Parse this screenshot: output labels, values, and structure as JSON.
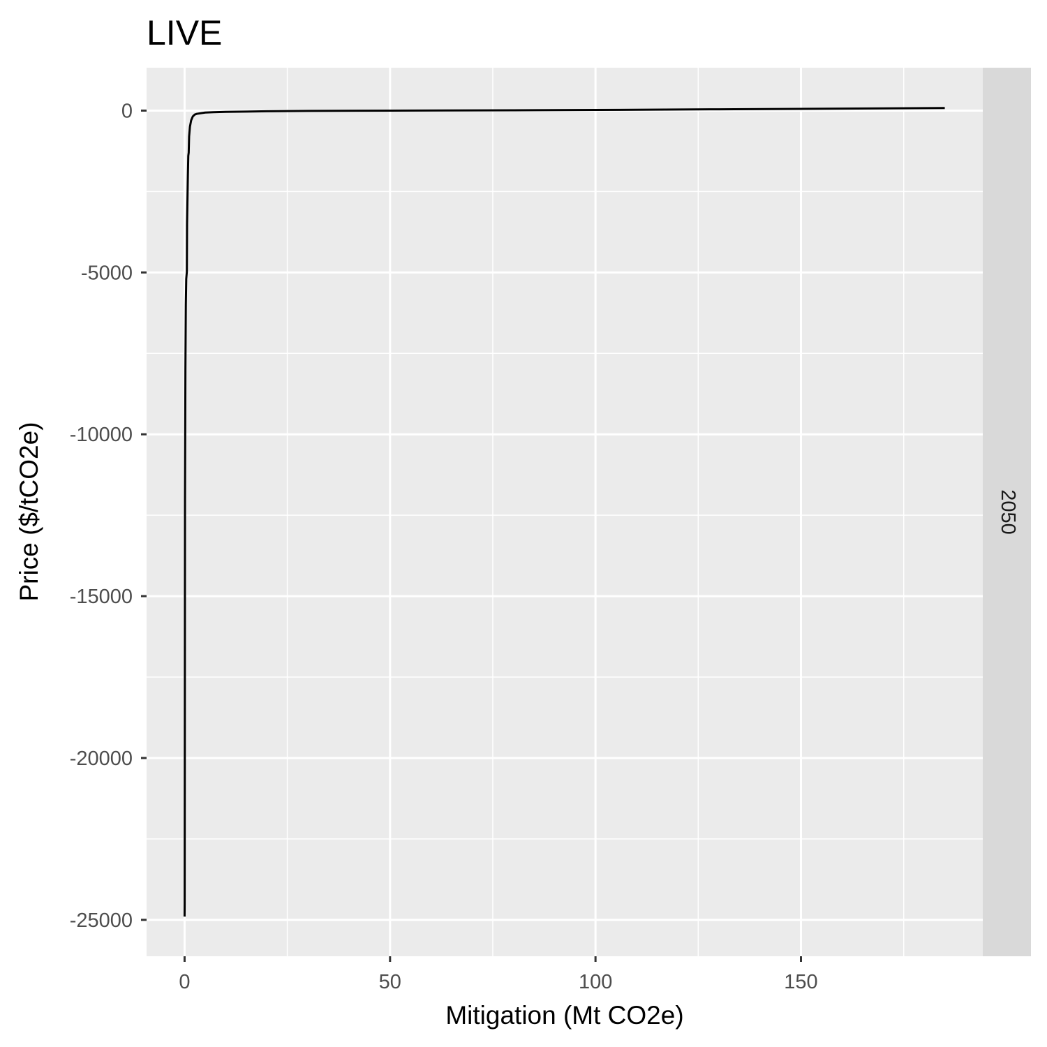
{
  "chart_data": {
    "type": "line",
    "title": "LIVE",
    "xlabel": "Mitigation (Mt CO2e)",
    "ylabel": "Price ($/tCO2e)",
    "facet_label": "2050",
    "xlim": [
      -9.25,
      194.25
    ],
    "ylim": [
      -26125,
      1325
    ],
    "x_ticks": [
      0,
      50,
      100,
      150
    ],
    "x_tick_labels": [
      "0",
      "50",
      "100",
      "150"
    ],
    "x_minor_ticks": [
      25,
      75,
      125,
      175
    ],
    "y_ticks": [
      0,
      -5000,
      -10000,
      -15000,
      -20000,
      -25000
    ],
    "y_tick_labels": [
      "0",
      "-5000",
      "-10000",
      "-15000",
      "-20000",
      "-25000"
    ],
    "y_minor_ticks": [
      -2500,
      -7500,
      -12500,
      -17500,
      -22500
    ],
    "grid": true,
    "panel_background": "#ebebeb",
    "strip_background": "#d9d9d9",
    "grid_color": "#ffffff",
    "line_color": "#000000",
    "series": [
      {
        "x": [
          0.0,
          0.02,
          0.05,
          0.08,
          0.1,
          0.15,
          0.2,
          0.3,
          0.4,
          0.5,
          0.55,
          0.6,
          0.8,
          0.9,
          1.0,
          1.1,
          1.3,
          1.6,
          2.0,
          2.5,
          3.0,
          4.0,
          5.0,
          7.0,
          10.0,
          15.0,
          20.0,
          30.0,
          50.0,
          80.0,
          100.0,
          130.0,
          160.0,
          185.0
        ],
        "y": [
          -24900,
          -24500,
          -20000,
          -15000,
          -12000,
          -10000,
          -8000,
          -6000,
          -5200,
          -5050,
          -5000,
          -3500,
          -2000,
          -1400,
          -1300,
          -800,
          -500,
          -300,
          -180,
          -120,
          -100,
          -80,
          -60,
          -50,
          -40,
          -30,
          -20,
          -10,
          0,
          10,
          20,
          40,
          60,
          80
        ]
      }
    ]
  }
}
